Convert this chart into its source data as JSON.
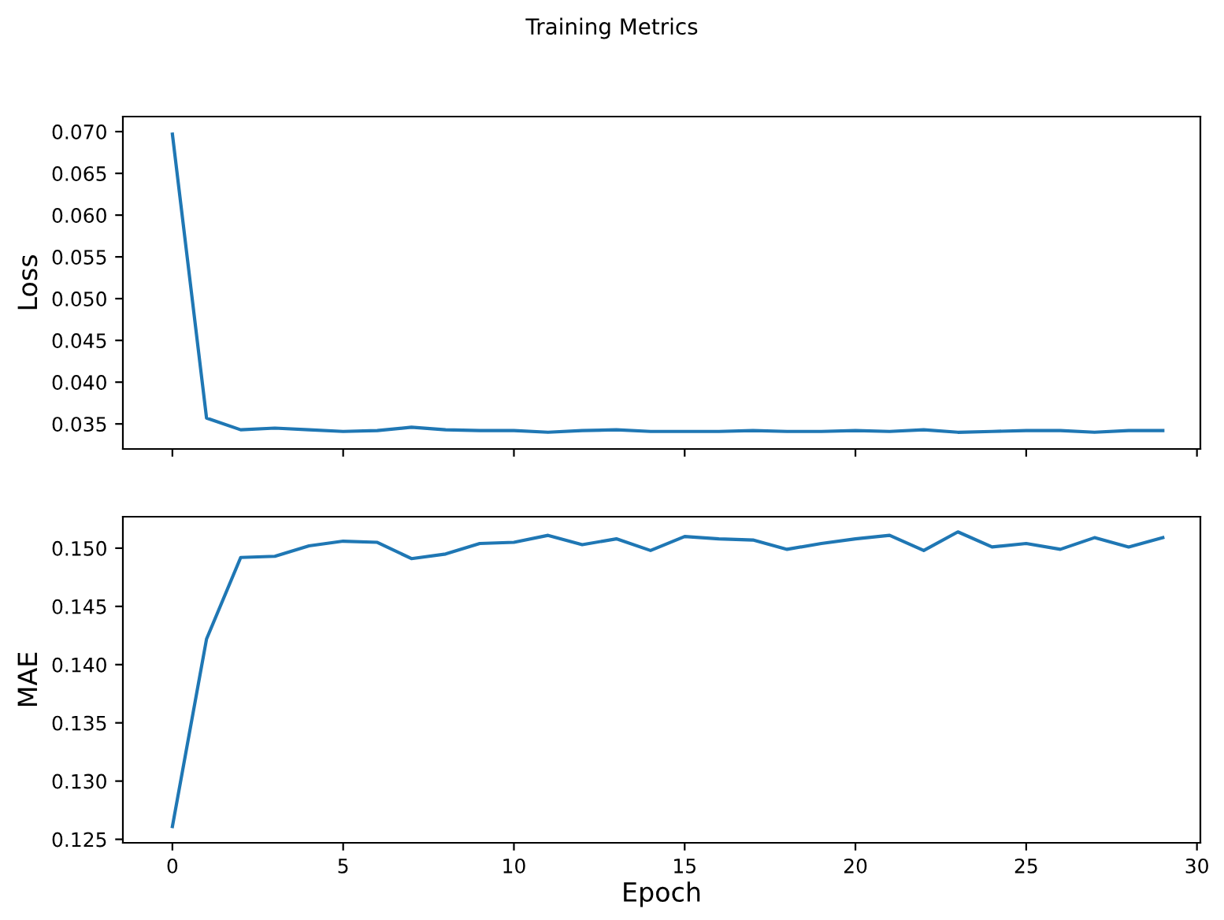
{
  "chart_data": [
    {
      "type": "line",
      "title": "Training Metrics",
      "ylabel": "Loss",
      "x": [
        0,
        1,
        2,
        3,
        4,
        5,
        6,
        7,
        8,
        9,
        10,
        11,
        12,
        13,
        14,
        15,
        16,
        17,
        18,
        19,
        20,
        21,
        22,
        23,
        24,
        25,
        26,
        27,
        28,
        29
      ],
      "series": [
        {
          "color": "#1f77b4",
          "values": [
            0.0697,
            0.0357,
            0.0343,
            0.0345,
            0.0343,
            0.0341,
            0.0342,
            0.0346,
            0.0343,
            0.0342,
            0.0342,
            0.034,
            0.0342,
            0.0343,
            0.0341,
            0.0341,
            0.0341,
            0.0342,
            0.0341,
            0.0341,
            0.0342,
            0.0341,
            0.0343,
            0.034,
            0.0341,
            0.0342,
            0.0342,
            0.034,
            0.0342,
            0.0342
          ]
        }
      ],
      "xlim": [
        -1.45,
        30.1
      ],
      "xticks": [
        0,
        5,
        10,
        15,
        20,
        25,
        30
      ],
      "ylim": [
        0.032,
        0.0718
      ],
      "yticks": [
        {
          "value": 0.035,
          "label": "0.035"
        },
        {
          "value": 0.04,
          "label": "0.040"
        },
        {
          "value": 0.045,
          "label": "0.045"
        },
        {
          "value": 0.05,
          "label": "0.050"
        },
        {
          "value": 0.055,
          "label": "0.055"
        },
        {
          "value": 0.06,
          "label": "0.060"
        },
        {
          "value": 0.065,
          "label": "0.065"
        },
        {
          "value": 0.07,
          "label": "0.070"
        }
      ],
      "tick_labels": "y",
      "grid": false,
      "legend": false,
      "marker": "none",
      "line_style": "solid"
    },
    {
      "type": "line",
      "xlabel": "Epoch",
      "ylabel": "MAE",
      "x": [
        0,
        1,
        2,
        3,
        4,
        5,
        6,
        7,
        8,
        9,
        10,
        11,
        12,
        13,
        14,
        15,
        16,
        17,
        18,
        19,
        20,
        21,
        22,
        23,
        24,
        25,
        26,
        27,
        28,
        29
      ],
      "series": [
        {
          "color": "#1f77b4",
          "values": [
            0.1261,
            0.1422,
            0.1492,
            0.1493,
            0.1502,
            0.1506,
            0.1505,
            0.1491,
            0.1495,
            0.1504,
            0.1505,
            0.1511,
            0.1503,
            0.1508,
            0.1498,
            0.151,
            0.1508,
            0.1507,
            0.1499,
            0.1504,
            0.1508,
            0.1511,
            0.1498,
            0.1514,
            0.1501,
            0.1504,
            0.1499,
            0.1509,
            0.1501,
            0.1509
          ]
        }
      ],
      "xlim": [
        -1.45,
        30.1
      ],
      "xticks": [
        0,
        5,
        10,
        15,
        20,
        25,
        30
      ],
      "ylim": [
        0.1247,
        0.1527
      ],
      "yticks": [
        {
          "value": 0.125,
          "label": "0.125"
        },
        {
          "value": 0.13,
          "label": "0.130"
        },
        {
          "value": 0.135,
          "label": "0.135"
        },
        {
          "value": 0.14,
          "label": "0.140"
        },
        {
          "value": 0.145,
          "label": "0.145"
        },
        {
          "value": 0.15,
          "label": "0.150"
        }
      ],
      "grid": false,
      "legend": false,
      "marker": "none",
      "line_style": "solid"
    }
  ]
}
